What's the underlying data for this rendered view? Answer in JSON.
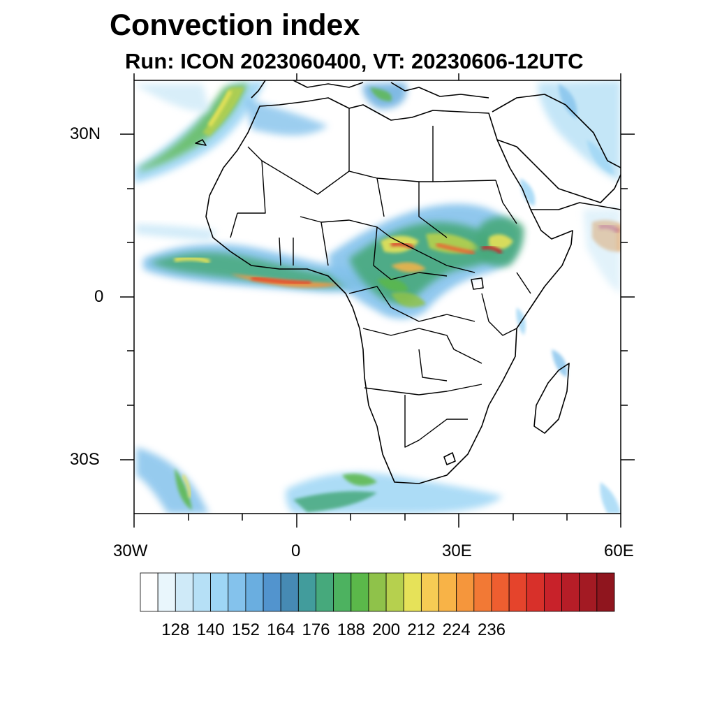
{
  "header": {
    "title": "Convection index",
    "subtitle": "Run: ICON 2023060400,  VT: 20230606-12UTC"
  },
  "map": {
    "lon_range": [
      -30,
      60
    ],
    "lat_range": [
      -40,
      40
    ],
    "lat_labels": [
      "30N",
      "0",
      "30S"
    ],
    "lon_labels": [
      "30W",
      "0",
      "30E",
      "60E"
    ]
  },
  "colorbar": {
    "colors": [
      "#ffffff",
      "#e9f6fc",
      "#cfeaf8",
      "#b6e0f6",
      "#9ed6f5",
      "#84c2ec",
      "#6aaee0",
      "#5294ce",
      "#468ab4",
      "#429c9c",
      "#46a97c",
      "#4db260",
      "#5bb84a",
      "#8fc24a",
      "#b6d04e",
      "#e6e259",
      "#f6cc54",
      "#f8b347",
      "#f5963c",
      "#f27935",
      "#ee5e30",
      "#e5442c",
      "#d8302a",
      "#c8222a",
      "#b61d27",
      "#a31a23",
      "#8f151e"
    ],
    "tick_labels": [
      "128",
      "140",
      "152",
      "164",
      "176",
      "188",
      "200",
      "212",
      "224",
      "236"
    ]
  },
  "chart_data": {
    "type": "heatmap",
    "title": "Convection index",
    "subtitle": "Run: ICON 2023060400,  VT: 20230606-12UTC",
    "colorbar_levels": [
      "128",
      "140",
      "152",
      "164",
      "176",
      "188",
      "200",
      "212",
      "224",
      "236"
    ],
    "xlim": [
      -30,
      60
    ],
    "ylim": [
      -40,
      40
    ],
    "regions": [
      {
        "lon": [
          -30,
          -8
        ],
        "lat": [
          25,
          40
        ],
        "max": 182
      },
      {
        "lon": [
          -30,
          8
        ],
        "lat": [
          1,
          9
        ],
        "max": 210
      },
      {
        "lon": [
          8,
          30
        ],
        "lat": [
          -4,
          12
        ],
        "max": 200
      },
      {
        "lon": [
          15,
          30
        ],
        "lat": [
          5,
          14
        ],
        "max": 226
      },
      {
        "lon": [
          30,
          42
        ],
        "lat": [
          6,
          15
        ],
        "max": 215
      },
      {
        "lon": [
          53,
          60
        ],
        "lat": [
          11,
          14
        ],
        "max": 225
      },
      {
        "lon": [
          -28,
          -15
        ],
        "lat": [
          -40,
          -28
        ],
        "max": 175
      },
      {
        "lon": [
          0,
          25
        ],
        "lat": [
          -40,
          -32
        ],
        "max": 178
      }
    ]
  }
}
